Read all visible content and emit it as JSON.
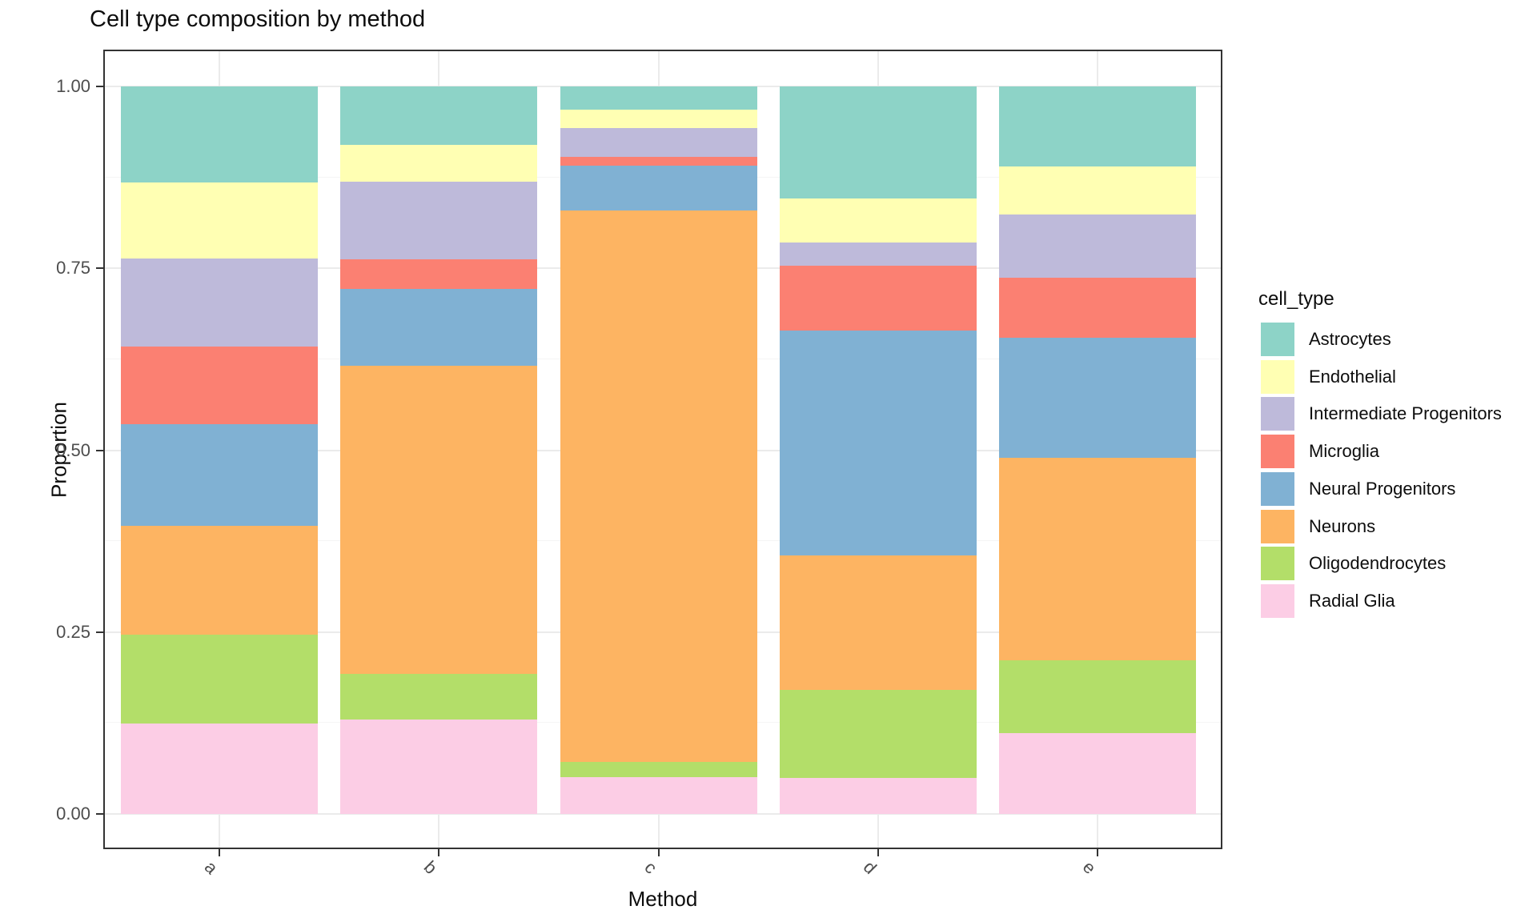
{
  "title": "Cell type composition by method",
  "axes": {
    "x": {
      "label": "Method",
      "categories": [
        "a",
        "b",
        "c",
        "d",
        "e"
      ]
    },
    "y": {
      "label": "Proportion",
      "tick_labels": [
        "1.00",
        "0.75",
        "0.50",
        "0.25",
        "0.00"
      ],
      "tick_values": [
        1.0,
        0.75,
        0.5,
        0.25,
        0.0
      ]
    }
  },
  "legend": {
    "title": "cell_type",
    "entries": [
      "Astrocytes",
      "Endothelial",
      "Intermediate Progenitors",
      "Microglia",
      "Neural Progenitors",
      "Neurons",
      "Oligodendrocytes",
      "Radial Glia"
    ]
  },
  "chart_data": {
    "type": "bar",
    "stacked": true,
    "normalized": true,
    "title": "Cell type composition by method",
    "xlabel": "Method",
    "ylabel": "Proportion",
    "ylim": [
      0,
      1
    ],
    "grid": "horizontal major + minor, light gray",
    "legend_position": "right",
    "categories": [
      "a",
      "b",
      "c",
      "d",
      "e"
    ],
    "stack_order_bottom_to_top": [
      "Radial Glia",
      "Oligodendrocytes",
      "Neurons",
      "Neural Progenitors",
      "Microglia",
      "Intermediate Progenitors",
      "Endothelial",
      "Astrocytes"
    ],
    "series": [
      {
        "name": "Astrocytes",
        "color": "#8DD3C7",
        "values": [
          0.132,
          0.08,
          0.032,
          0.154,
          0.11
        ]
      },
      {
        "name": "Endothelial",
        "color": "#FFFFB3",
        "values": [
          0.105,
          0.051,
          0.025,
          0.061,
          0.066
        ]
      },
      {
        "name": "Intermediate Progenitors",
        "color": "#BEBADA",
        "values": [
          0.12,
          0.107,
          0.04,
          0.031,
          0.087
        ]
      },
      {
        "name": "Microglia",
        "color": "#FB8072",
        "values": [
          0.107,
          0.04,
          0.012,
          0.09,
          0.082
        ]
      },
      {
        "name": "Neural Progenitors",
        "color": "#80B1D3",
        "values": [
          0.14,
          0.106,
          0.062,
          0.309,
          0.166
        ]
      },
      {
        "name": "Neurons",
        "color": "#FDB462",
        "values": [
          0.15,
          0.423,
          0.757,
          0.185,
          0.278
        ]
      },
      {
        "name": "Oligodendrocytes",
        "color": "#B3DE69",
        "values": [
          0.122,
          0.063,
          0.021,
          0.121,
          0.1
        ]
      },
      {
        "name": "Radial Glia",
        "color": "#FCCDE5",
        "values": [
          0.124,
          0.13,
          0.051,
          0.049,
          0.111
        ]
      }
    ]
  }
}
